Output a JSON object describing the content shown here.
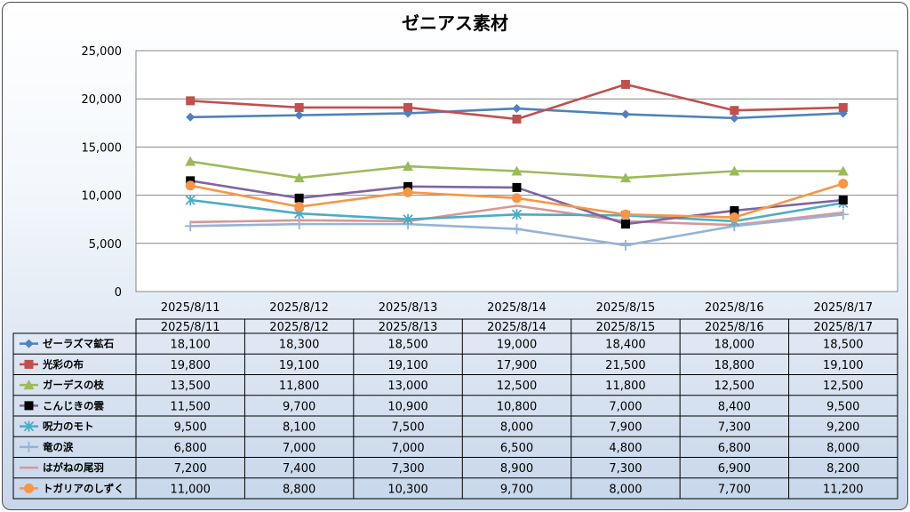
{
  "chart_data": {
    "type": "line",
    "title": "ゼニアス素材",
    "xlabel": "",
    "ylabel": "",
    "ylim": [
      0,
      25000
    ],
    "y_ticks": [
      "0",
      "5,000",
      "10,000",
      "15,000",
      "20,000",
      "25,000"
    ],
    "categories": [
      "2025/8/11",
      "2025/8/12",
      "2025/8/13",
      "2025/8/14",
      "2025/8/15",
      "2025/8/16",
      "2025/8/17"
    ],
    "grid": true,
    "legend": "data-table",
    "series": [
      {
        "name": "ゼーラズマ鉱石",
        "color": "#4f81bd",
        "marker": "diamond",
        "values": [
          18100,
          18300,
          18500,
          19000,
          18400,
          18000,
          18500
        ],
        "labels": [
          "18,100",
          "18,300",
          "18,500",
          "19,000",
          "18,400",
          "18,000",
          "18,500"
        ]
      },
      {
        "name": "光彩の布",
        "color": "#c0504d",
        "marker": "square",
        "values": [
          19800,
          19100,
          19100,
          17900,
          21500,
          18800,
          19100
        ],
        "labels": [
          "19,800",
          "19,100",
          "19,100",
          "17,900",
          "21,500",
          "18,800",
          "19,100"
        ]
      },
      {
        "name": "ガーデスの枝",
        "color": "#9bbb59",
        "marker": "triangle",
        "values": [
          13500,
          11800,
          13000,
          12500,
          11800,
          12500,
          12500
        ],
        "labels": [
          "13,500",
          "11,800",
          "13,000",
          "12,500",
          "11,800",
          "12,500",
          "12,500"
        ]
      },
      {
        "name": "こんじきの雲",
        "color": "#8064a2",
        "marker": "blacksquare",
        "values": [
          11500,
          9700,
          10900,
          10800,
          7000,
          8400,
          9500
        ],
        "labels": [
          "11,500",
          "9,700",
          "10,900",
          "10,800",
          "7,000",
          "8,400",
          "9,500"
        ]
      },
      {
        "name": "呪力のモト",
        "color": "#4bacc6",
        "marker": "star",
        "values": [
          9500,
          8100,
          7500,
          8000,
          7900,
          7300,
          9200
        ],
        "labels": [
          "9,500",
          "8,100",
          "7,500",
          "8,000",
          "7,900",
          "7,300",
          "9,200"
        ]
      },
      {
        "name": "竜の涙",
        "color": "#95b3d7",
        "marker": "plus",
        "values": [
          6800,
          7000,
          7000,
          6500,
          4800,
          6800,
          8000
        ],
        "labels": [
          "6,800",
          "7,000",
          "7,000",
          "6,500",
          "4,800",
          "6,800",
          "8,000"
        ]
      },
      {
        "name": "はがねの尾羽",
        "color": "#d99694",
        "marker": "none",
        "values": [
          7200,
          7400,
          7300,
          8900,
          7300,
          6900,
          8200
        ],
        "labels": [
          "7,200",
          "7,400",
          "7,300",
          "8,900",
          "7,300",
          "6,900",
          "8,200"
        ]
      },
      {
        "name": "トガリアのしずく",
        "color": "#f79646",
        "marker": "circle",
        "values": [
          11000,
          8800,
          10300,
          9700,
          8000,
          7700,
          11200
        ],
        "labels": [
          "11,000",
          "8,800",
          "10,300",
          "9,700",
          "8,000",
          "7,700",
          "11,200"
        ]
      }
    ]
  }
}
